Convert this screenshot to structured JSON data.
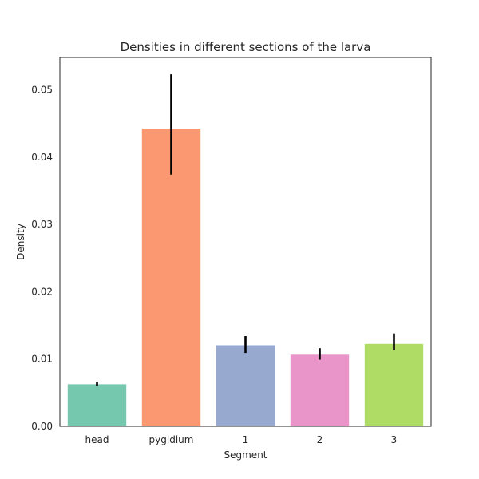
{
  "chart_data": {
    "type": "bar",
    "title": "Densities in different sections of the larva",
    "xlabel": "Segment",
    "ylabel": "Density",
    "categories": [
      "head",
      "pygidium",
      "1",
      "2",
      "3"
    ],
    "values": [
      0.0063,
      0.0443,
      0.0121,
      0.0107,
      0.0123
    ],
    "error_low": [
      0.006,
      0.0374,
      0.0109,
      0.0099,
      0.0113
    ],
    "error_high": [
      0.0066,
      0.0523,
      0.0134,
      0.0116,
      0.0138
    ],
    "colors": [
      "#66c2a5",
      "#fc8d62",
      "#8da0cb",
      "#e78ac3",
      "#a6d854"
    ],
    "bar_opacity": 0.9,
    "ylim": [
      0,
      0.0548
    ],
    "yticks": [
      "0.00",
      "0.01",
      "0.02",
      "0.03",
      "0.04",
      "0.05"
    ],
    "ytick_values": [
      0,
      0.01,
      0.02,
      0.03,
      0.04,
      0.05
    ],
    "grid": false,
    "legend": "none"
  }
}
